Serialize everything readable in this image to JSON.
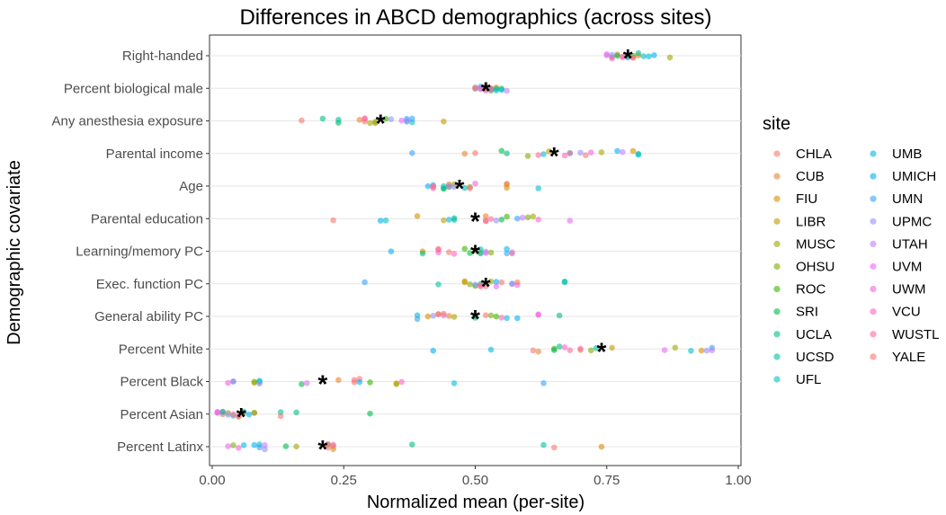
{
  "chart_data": {
    "type": "scatter",
    "title": "Differences in ABCD demographics (across sites)",
    "xlabel": "Normalized mean (per-site)",
    "ylabel": "Demographic covariate",
    "xlim": [
      0,
      1
    ],
    "x_ticks": [
      "0.00",
      "0.25",
      "0.50",
      "0.75",
      "1.00"
    ],
    "x_tick_values": [
      0,
      0.25,
      0.5,
      0.75,
      1.0
    ],
    "grid": "horizontal",
    "legend_position": "right",
    "legend_title": "site",
    "mean_marker": "*",
    "categories": [
      "Right-handed",
      "Percent biological male",
      "Any anesthesia exposure",
      "Parental income",
      "Age",
      "Parental education",
      "Learning/memory PC",
      "Exec. function PC",
      "General ability PC",
      "Percent White",
      "Percent Black",
      "Percent Asian",
      "Percent Latinx"
    ],
    "sites": [
      {
        "name": "CHLA",
        "color": "#F8766D"
      },
      {
        "name": "CUB",
        "color": "#EA8331"
      },
      {
        "name": "FIU",
        "color": "#D89000"
      },
      {
        "name": "LIBR",
        "color": "#C09B00"
      },
      {
        "name": "MUSC",
        "color": "#A3A500"
      },
      {
        "name": "OHSU",
        "color": "#7CAE00"
      },
      {
        "name": "ROC",
        "color": "#39B600"
      },
      {
        "name": "SRI",
        "color": "#00BB4E"
      },
      {
        "name": "UCLA",
        "color": "#00BF7D"
      },
      {
        "name": "UCSD",
        "color": "#00C1A3"
      },
      {
        "name": "UFL",
        "color": "#00BFC4"
      },
      {
        "name": "UMB",
        "color": "#00BAE0"
      },
      {
        "name": "UMICH",
        "color": "#00B0F6"
      },
      {
        "name": "UMN",
        "color": "#35A2FF"
      },
      {
        "name": "UPMC",
        "color": "#9590FF"
      },
      {
        "name": "UTAH",
        "color": "#C77CFF"
      },
      {
        "name": "UVM",
        "color": "#E76BF3"
      },
      {
        "name": "UWM",
        "color": "#FA62DB"
      },
      {
        "name": "VCU",
        "color": "#FF62BC"
      },
      {
        "name": "WUSTL",
        "color": "#FF6A98"
      },
      {
        "name": "YALE",
        "color": "#F8766D"
      }
    ],
    "means": [
      0.79,
      0.52,
      0.32,
      0.65,
      0.47,
      0.5,
      0.5,
      0.52,
      0.5,
      0.74,
      0.21,
      0.055,
      0.21
    ],
    "series": [
      {
        "name": "CHLA",
        "values": [
          0.78,
          0.52,
          0.17,
          0.71,
          0.56,
          0.23,
          0.43,
          0.52,
          0.52,
          0.61,
          0.28,
          0.08,
          0.65
        ]
      },
      {
        "name": "CUB",
        "values": [
          0.79,
          0.54,
          0.28,
          0.48,
          0.56,
          0.52,
          0.57,
          0.58,
          0.45,
          0.62,
          0.24,
          0.02,
          0.23
        ]
      },
      {
        "name": "FIU",
        "values": [
          0.81,
          0.5,
          0.31,
          0.8,
          0.56,
          0.39,
          0.4,
          0.48,
          0.41,
          0.93,
          0.08,
          0.05,
          0.74
        ]
      },
      {
        "name": "LIBR",
        "values": [
          0.77,
          0.53,
          0.44,
          0.64,
          0.45,
          0.44,
          0.51,
          0.48,
          0.43,
          0.76,
          0.35,
          0.06,
          0.23
        ]
      },
      {
        "name": "MUSC",
        "values": [
          0.87,
          0.52,
          0.3,
          0.74,
          0.46,
          0.61,
          0.5,
          0.53,
          0.46,
          0.88,
          0.35,
          0.03,
          0.16
        ]
      },
      {
        "name": "OHSU",
        "values": [
          0.76,
          0.5,
          0.31,
          0.6,
          0.49,
          0.6,
          0.53,
          0.49,
          0.53,
          0.72,
          0.08,
          0.08,
          0.04
        ]
      },
      {
        "name": "ROC",
        "values": [
          0.8,
          0.53,
          0.33,
          0.68,
          0.44,
          0.56,
          0.48,
          0.5,
          0.54,
          0.65,
          0.3,
          0.02,
          0.22
        ]
      },
      {
        "name": "SRI",
        "values": [
          0.77,
          0.55,
          0.24,
          0.55,
          0.45,
          0.55,
          0.49,
          0.51,
          0.5,
          0.65,
          0.17,
          0.3,
          0.14
        ]
      },
      {
        "name": "UCLA",
        "values": [
          0.79,
          0.54,
          0.21,
          0.56,
          0.44,
          0.46,
          0.4,
          0.67,
          0.66,
          0.66,
          0.09,
          0.16,
          0.38
        ]
      },
      {
        "name": "UCSD",
        "values": [
          0.81,
          0.52,
          0.24,
          0.81,
          0.48,
          0.46,
          0.51,
          0.43,
          0.5,
          0.73,
          0.04,
          0.13,
          0.63
        ]
      },
      {
        "name": "UFL",
        "values": [
          0.82,
          0.54,
          0.38,
          0.81,
          0.44,
          0.33,
          0.51,
          0.67,
          0.39,
          0.91,
          0.09,
          0.04,
          0.09
        ]
      },
      {
        "name": "UMB",
        "values": [
          0.83,
          0.55,
          0.37,
          0.63,
          0.62,
          0.45,
          0.56,
          0.57,
          0.56,
          0.53,
          0.46,
          0.06,
          0.06
        ]
      },
      {
        "name": "UMICH",
        "values": [
          0.84,
          0.51,
          0.37,
          0.77,
          0.41,
          0.32,
          0.34,
          0.54,
          0.58,
          0.42,
          0.28,
          0.07,
          0.08
        ]
      },
      {
        "name": "UMN",
        "values": [
          0.79,
          0.53,
          0.38,
          0.38,
          0.42,
          0.58,
          0.56,
          0.29,
          0.39,
          0.95,
          0.63,
          0.02,
          0.09
        ]
      },
      {
        "name": "UPMC",
        "values": [
          0.76,
          0.51,
          0.34,
          0.7,
          0.46,
          0.54,
          0.52,
          0.5,
          0.42,
          0.94,
          0.09,
          0.03,
          0.1
        ]
      },
      {
        "name": "UTAH",
        "values": [
          0.75,
          0.56,
          0.37,
          0.78,
          0.42,
          0.59,
          0.57,
          0.57,
          0.44,
          0.95,
          0.04,
          0.01,
          0.1
        ]
      },
      {
        "name": "UVM",
        "values": [
          0.75,
          0.5,
          0.36,
          0.68,
          0.45,
          0.68,
          0.52,
          0.54,
          0.62,
          0.86,
          0.18,
          0.01,
          0.03
        ]
      },
      {
        "name": "UWM",
        "values": [
          0.76,
          0.52,
          0.32,
          0.72,
          0.5,
          0.62,
          0.43,
          0.58,
          0.62,
          0.67,
          0.03,
          0.01,
          0.05
        ]
      },
      {
        "name": "VCU",
        "values": [
          0.78,
          0.51,
          0.29,
          0.67,
          0.42,
          0.52,
          0.46,
          0.51,
          0.55,
          0.7,
          0.36,
          0.05,
          0.23
        ]
      },
      {
        "name": "WUSTL",
        "values": [
          0.8,
          0.53,
          0.29,
          0.62,
          0.49,
          0.53,
          0.43,
          0.51,
          0.43,
          0.68,
          0.27,
          0.04,
          0.22
        ]
      },
      {
        "name": "YALE",
        "values": [
          0.8,
          0.52,
          0.29,
          0.5,
          0.42,
          0.52,
          0.45,
          0.55,
          0.44,
          0.7,
          0.27,
          0.13,
          0.22
        ]
      }
    ]
  }
}
